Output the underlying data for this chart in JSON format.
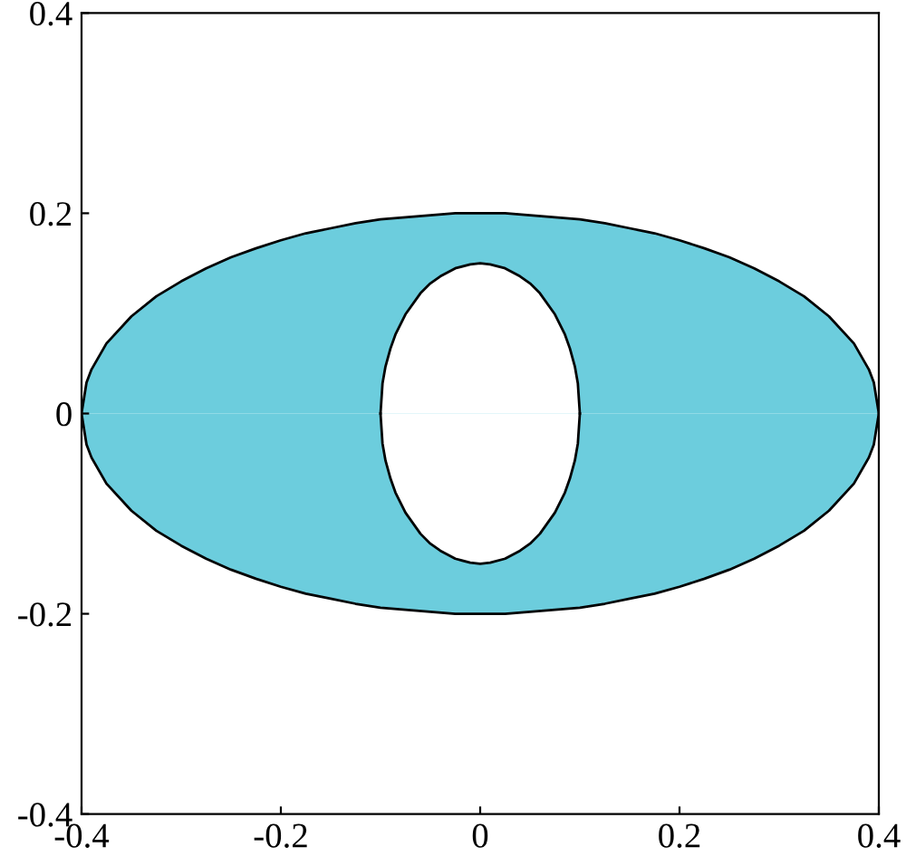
{
  "chart_data": {
    "type": "area",
    "series": [
      {
        "color": "#6ccddd",
        "x": [
          -0.4,
          -0.395,
          -0.39,
          -0.375,
          -0.35,
          -0.325,
          -0.3,
          -0.275,
          -0.25,
          -0.225,
          -0.2,
          -0.175,
          -0.15,
          -0.125,
          -0.1,
          -0.075,
          -0.05,
          -0.025,
          0,
          0.025,
          0.05,
          0.075,
          0.1,
          0.125,
          0.15,
          0.175,
          0.2,
          0.225,
          0.25,
          0.275,
          0.3,
          0.325,
          0.35,
          0.375,
          0.39,
          0.395,
          0.4
        ],
        "values": [
          0,
          0.031,
          0.044,
          0.07,
          0.097,
          0.117,
          0.132,
          0.145,
          0.156,
          0.165,
          0.173,
          0.18,
          0.185,
          0.19,
          0.194,
          0.196,
          0.198,
          0.2,
          0.2,
          0.2,
          0.198,
          0.196,
          0.194,
          0.19,
          0.185,
          0.18,
          0.173,
          0.165,
          0.156,
          0.145,
          0.132,
          0.117,
          0.097,
          0.07,
          0.044,
          0.031,
          0
        ]
      },
      {
        "color": "#6ccddd",
        "x": [
          -0.4,
          -0.395,
          -0.39,
          -0.375,
          -0.35,
          -0.325,
          -0.3,
          -0.275,
          -0.25,
          -0.225,
          -0.2,
          -0.175,
          -0.15,
          -0.125,
          -0.1,
          -0.075,
          -0.05,
          -0.025,
          0,
          0.025,
          0.05,
          0.075,
          0.1,
          0.125,
          0.15,
          0.175,
          0.2,
          0.225,
          0.25,
          0.275,
          0.3,
          0.325,
          0.35,
          0.375,
          0.39,
          0.395,
          0.4
        ],
        "values": [
          0,
          -0.031,
          -0.044,
          -0.07,
          -0.097,
          -0.117,
          -0.132,
          -0.145,
          -0.156,
          -0.165,
          -0.173,
          -0.18,
          -0.185,
          -0.19,
          -0.194,
          -0.196,
          -0.198,
          -0.2,
          -0.2,
          -0.2,
          -0.198,
          -0.196,
          -0.194,
          -0.19,
          -0.185,
          -0.18,
          -0.173,
          -0.165,
          -0.156,
          -0.145,
          -0.132,
          -0.117,
          -0.097,
          -0.07,
          -0.044,
          -0.031,
          0
        ]
      },
      {
        "color": "#ffffff",
        "x": [
          -0.1,
          -0.098,
          -0.095,
          -0.09,
          -0.085,
          -0.075,
          -0.06,
          -0.05,
          -0.04,
          -0.025,
          -0.01,
          0,
          0.01,
          0.025,
          0.04,
          0.05,
          0.06,
          0.075,
          0.085,
          0.09,
          0.095,
          0.098,
          0.1
        ],
        "values": [
          0,
          0.03,
          0.047,
          0.065,
          0.079,
          0.099,
          0.12,
          0.13,
          0.137,
          0.145,
          0.149,
          0.15,
          0.149,
          0.145,
          0.137,
          0.13,
          0.12,
          0.099,
          0.079,
          0.065,
          0.047,
          0.03,
          0
        ]
      },
      {
        "color": "#ffffff",
        "x": [
          -0.1,
          -0.098,
          -0.095,
          -0.09,
          -0.085,
          -0.075,
          -0.06,
          -0.05,
          -0.04,
          -0.025,
          -0.01,
          0,
          0.01,
          0.025,
          0.04,
          0.05,
          0.06,
          0.075,
          0.085,
          0.09,
          0.095,
          0.098,
          0.1
        ],
        "values": [
          0,
          -0.03,
          -0.047,
          -0.065,
          -0.079,
          -0.099,
          -0.12,
          -0.13,
          -0.137,
          -0.145,
          -0.149,
          -0.15,
          -0.149,
          -0.145,
          -0.137,
          -0.13,
          -0.12,
          -0.099,
          -0.079,
          -0.065,
          -0.047,
          -0.03,
          0
        ]
      }
    ],
    "xlim": [
      -0.4,
      0.4
    ],
    "ylim": [
      -0.4,
      0.4
    ],
    "xticks": [
      -0.4,
      -0.2,
      0,
      0.2,
      0.4
    ],
    "yticks": [
      -0.4,
      -0.2,
      0,
      0.2,
      0.4
    ],
    "grid": false
  }
}
